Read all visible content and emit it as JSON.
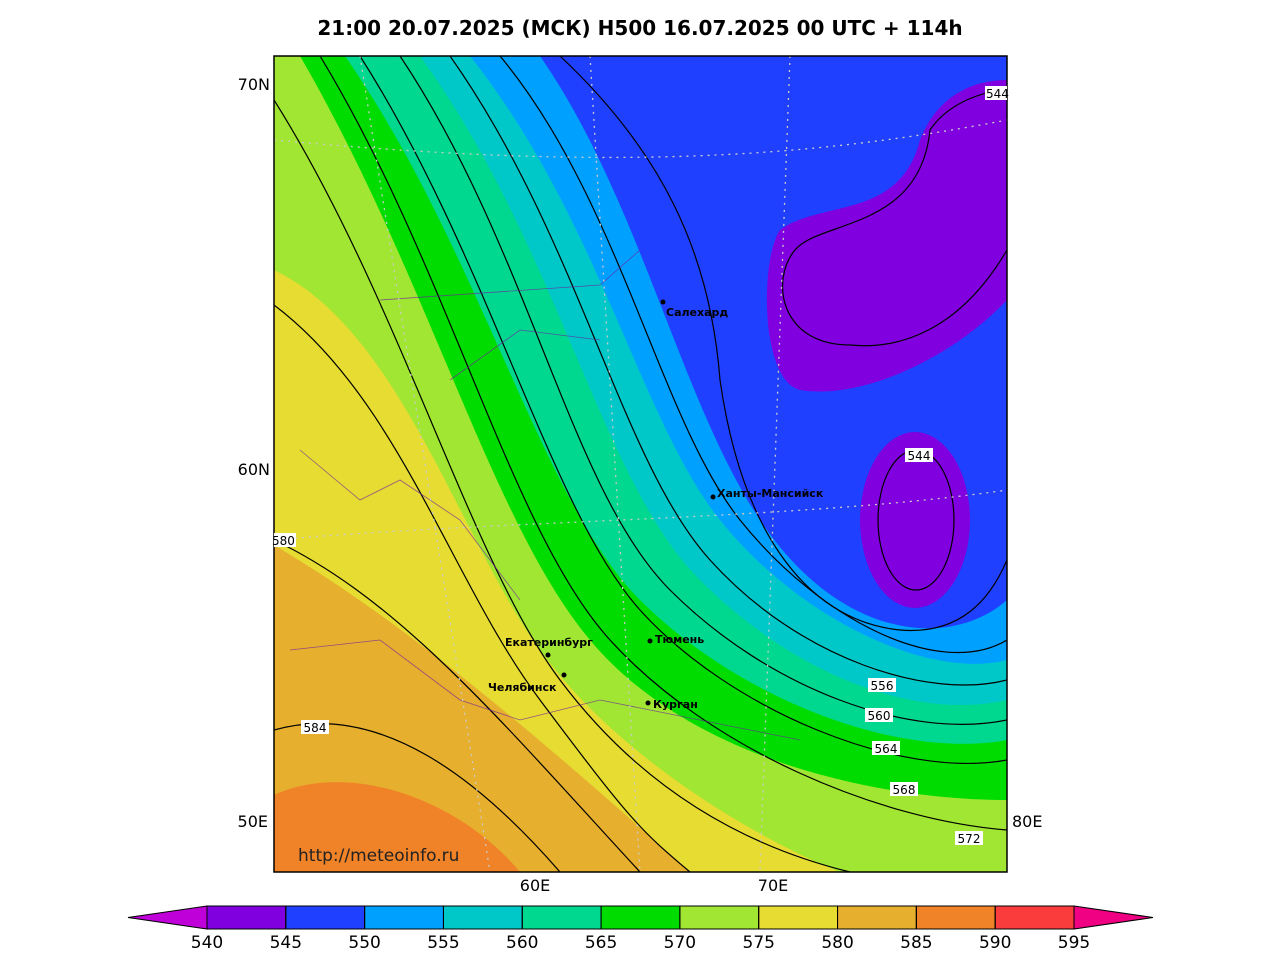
{
  "title": "21:00 20.07.2025 (МСК) H500  16.07.2025 00 UTC + 114h",
  "axis_labels": {
    "left": [
      "70N",
      "60N",
      "50E"
    ],
    "right": [
      "80E"
    ],
    "bottom": [
      "60E",
      "70E"
    ]
  },
  "cities": [
    "Салехард",
    "Ханты-Мансийск",
    "Екатеринбург",
    "Тюмень",
    "Челябинск",
    "Курган"
  ],
  "contour_labels": [
    "544",
    "544",
    "580",
    "584",
    "556",
    "560",
    "564",
    "568",
    "572"
  ],
  "watermark": "http://meteoinfo.ru",
  "colorbar": {
    "ticks": [
      540,
      545,
      550,
      555,
      560,
      565,
      570,
      575,
      580,
      585,
      590,
      595
    ],
    "colors": [
      "#8000e0",
      "#2040ff",
      "#00a0ff",
      "#00c8c8",
      "#00d890",
      "#00dc00",
      "#a0e632",
      "#e6dc32",
      "#e6af2d",
      "#f08228",
      "#fa3c3c"
    ],
    "under_color": "#c000d8",
    "over_color": "#f00082"
  }
}
